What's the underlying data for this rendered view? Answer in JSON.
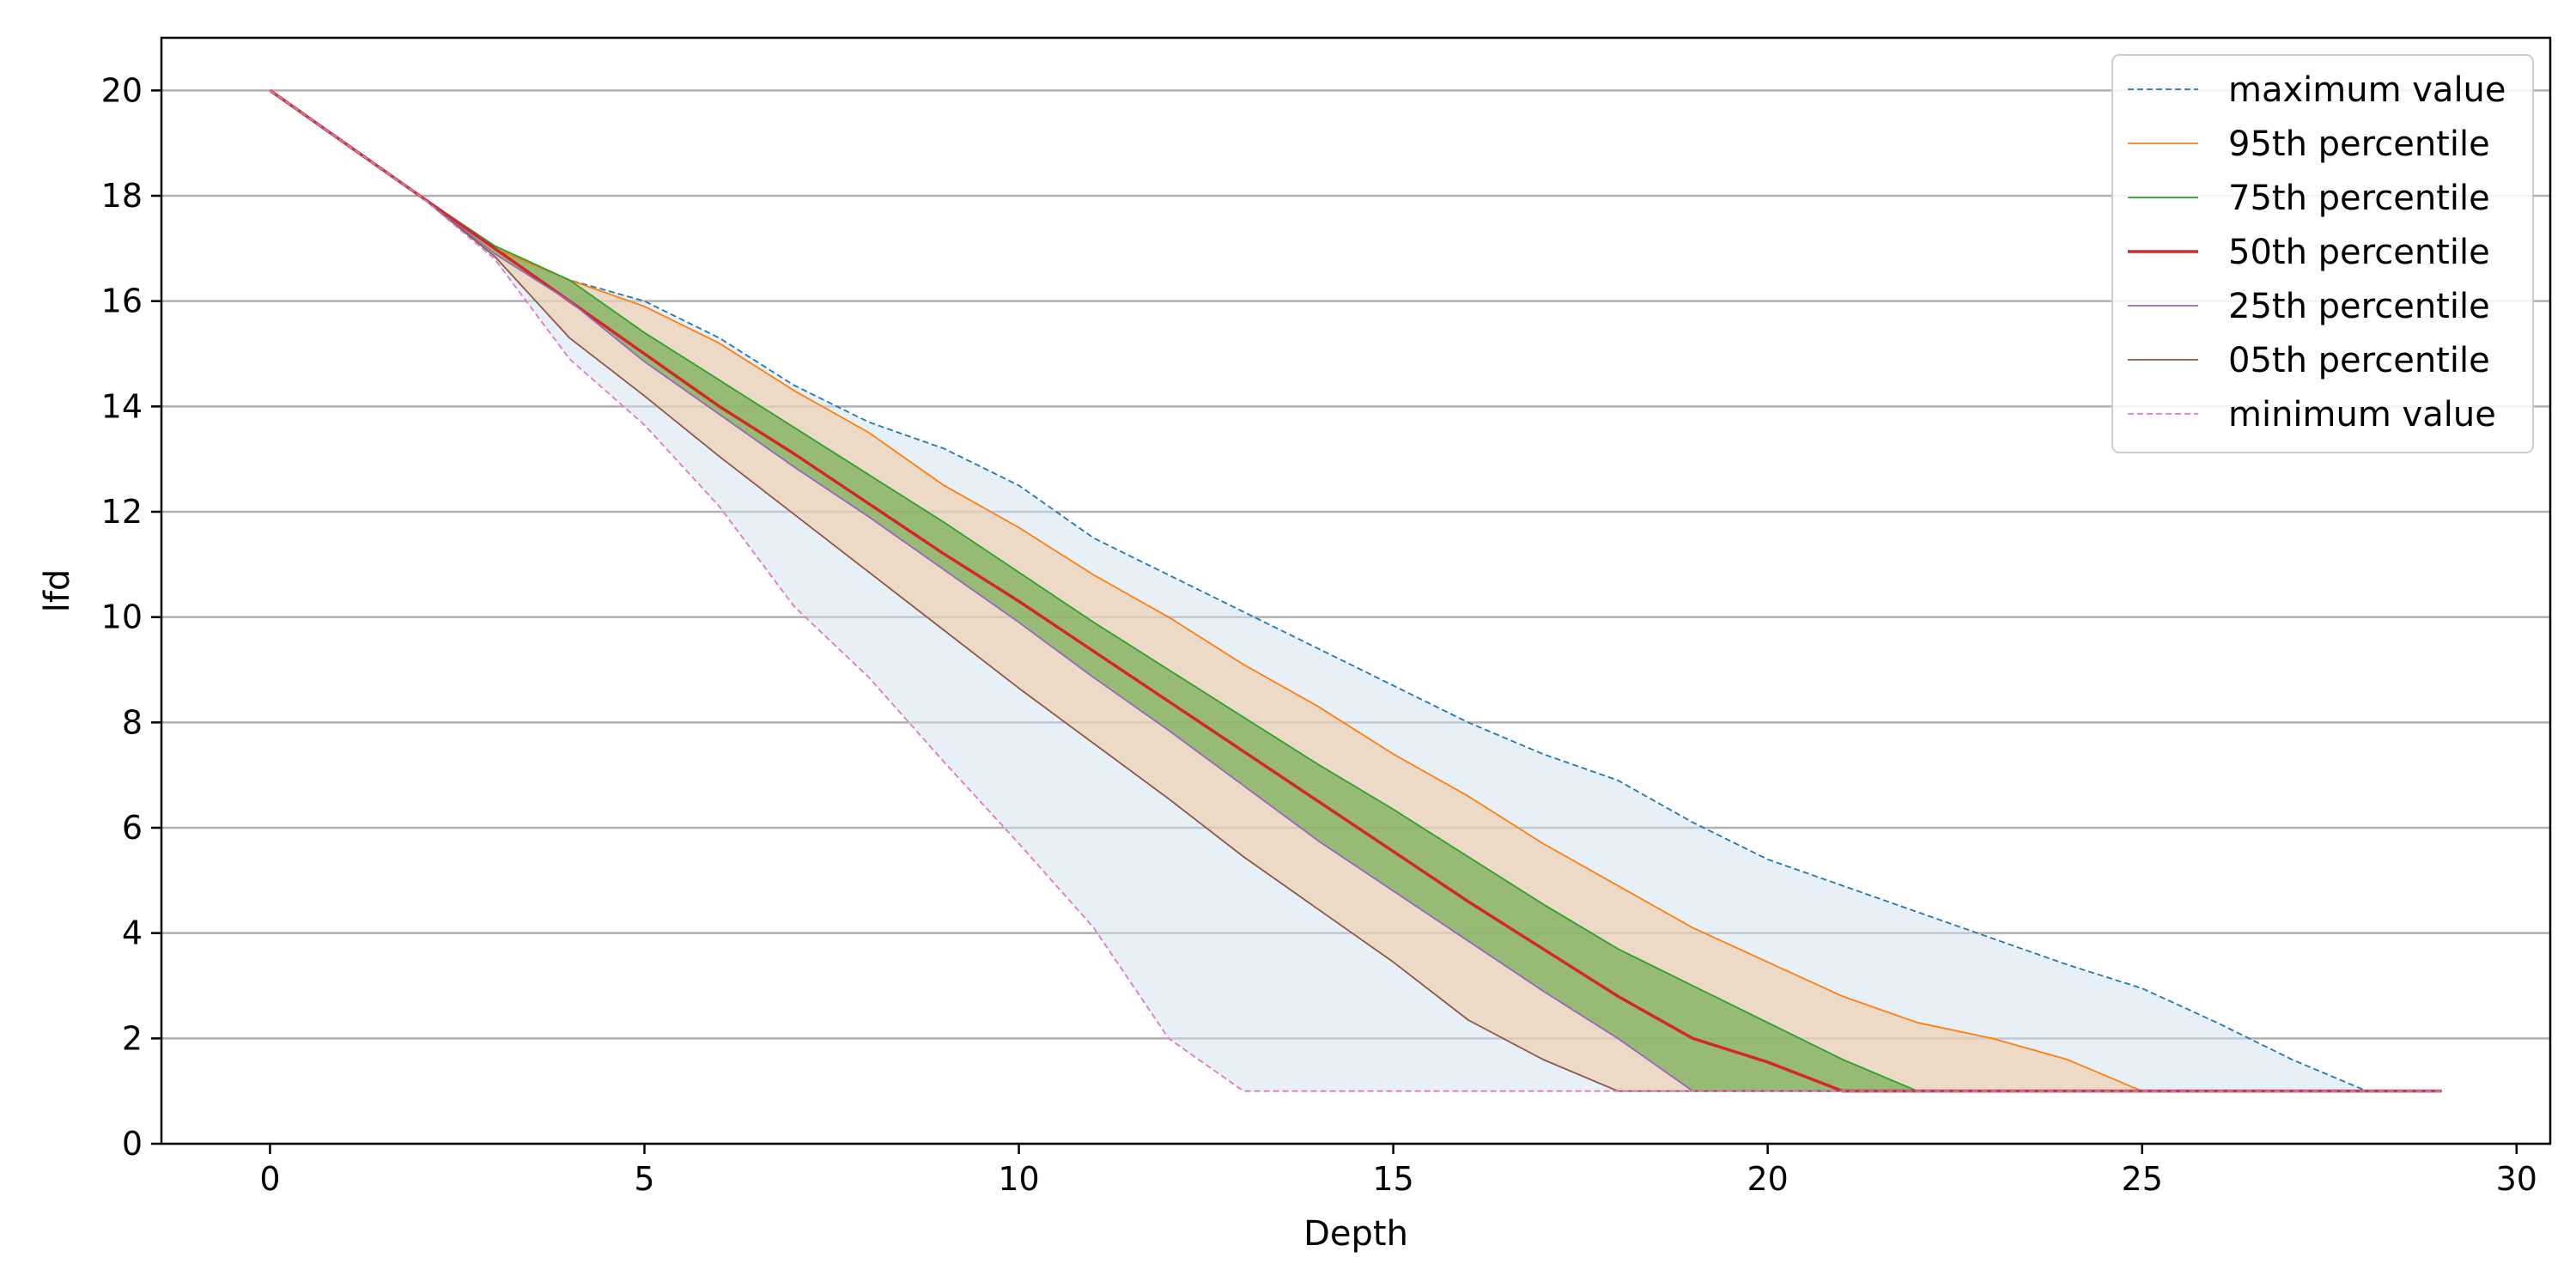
{
  "chart_data": {
    "type": "line",
    "title": "",
    "xlabel": "Depth",
    "ylabel": "lfd",
    "xlim": [
      -1.45,
      30.45
    ],
    "ylim": [
      0,
      21
    ],
    "xticks": [
      0,
      5,
      10,
      15,
      20,
      25,
      30
    ],
    "yticks": [
      0,
      2,
      4,
      6,
      8,
      10,
      12,
      14,
      16,
      18,
      20
    ],
    "grid": "horizontal",
    "legend_position": "top-right",
    "x": [
      0,
      1,
      2,
      3,
      4,
      5,
      6,
      7,
      8,
      9,
      10,
      11,
      12,
      13,
      14,
      15,
      16,
      17,
      18,
      19,
      20,
      21,
      22,
      23,
      24,
      25,
      26,
      27,
      28,
      29
    ],
    "series": [
      {
        "name": "maximum value",
        "color": "#1f77b4",
        "style": "dashed",
        "values": [
          20,
          19,
          18,
          17,
          16.4,
          16,
          15.3,
          14.4,
          13.7,
          13.2,
          12.5,
          11.5,
          10.8,
          10.1,
          9.4,
          8.7,
          8,
          7.4,
          6.9,
          6.1,
          5.4,
          4.9,
          4.4,
          3.9,
          3.4,
          2.95,
          2.3,
          1.6,
          1,
          1
        ]
      },
      {
        "name": "95th percentile",
        "color": "#ff7f0e",
        "style": "solid",
        "values": [
          20,
          19,
          18,
          17,
          16.4,
          15.9,
          15.2,
          14.3,
          13.5,
          12.5,
          11.7,
          10.8,
          10,
          9.1,
          8.3,
          7.4,
          6.6,
          5.7,
          4.9,
          4.1,
          3.45,
          2.8,
          2.3,
          2,
          1.6,
          1,
          1,
          1,
          1,
          1
        ]
      },
      {
        "name": "75th percentile",
        "color": "#2ca02c",
        "style": "solid",
        "values": [
          20,
          19,
          18,
          17.05,
          16.4,
          15.4,
          14.5,
          13.6,
          12.7,
          11.8,
          10.85,
          9.9,
          9,
          8.1,
          7.2,
          6.35,
          5.45,
          4.55,
          3.7,
          3,
          2.3,
          1.6,
          1,
          1,
          1,
          1,
          1,
          1,
          1,
          1
        ]
      },
      {
        "name": "50th percentile",
        "color": "#d62728",
        "style": "solid",
        "values": [
          20,
          19,
          18,
          17,
          16,
          15,
          14,
          13.1,
          12.15,
          11.2,
          10.3,
          9.35,
          8.4,
          7.45,
          6.5,
          5.55,
          4.6,
          3.7,
          2.8,
          2,
          1.55,
          1,
          1,
          1,
          1,
          1,
          1,
          1,
          1,
          1
        ]
      },
      {
        "name": "25th percentile",
        "color": "#9467bd",
        "style": "solid",
        "values": [
          20,
          19,
          18,
          16.9,
          16,
          14.85,
          13.85,
          12.85,
          11.9,
          10.9,
          9.9,
          8.85,
          7.85,
          6.8,
          5.75,
          4.8,
          3.85,
          2.9,
          2,
          1,
          1,
          1,
          1,
          1,
          1,
          1,
          1,
          1,
          1,
          1
        ]
      },
      {
        "name": "05th percentile",
        "color": "#8c564b",
        "style": "solid",
        "values": [
          20,
          19,
          18,
          16.85,
          15.3,
          14.2,
          13.05,
          11.95,
          10.85,
          9.75,
          8.65,
          7.6,
          6.55,
          5.45,
          4.45,
          3.45,
          2.35,
          1.6,
          1,
          1,
          1,
          1,
          1,
          1,
          1,
          1,
          1,
          1,
          1,
          1
        ]
      },
      {
        "name": "minimum value",
        "color": "#e377c2",
        "style": "dashed",
        "values": [
          20,
          19,
          18,
          16.8,
          14.9,
          13.65,
          12.1,
          10.2,
          8.85,
          7.25,
          5.7,
          4.1,
          2,
          1,
          1,
          1,
          1,
          1,
          1,
          1,
          1,
          1,
          1,
          1,
          1,
          1,
          1,
          1,
          1,
          1
        ]
      }
    ],
    "bands": [
      {
        "between": [
          "minimum value",
          "maximum value"
        ],
        "color": "#cfe0f0",
        "opacity": 0.5
      },
      {
        "between": [
          "05th percentile",
          "95th percentile"
        ],
        "color": "#f0c8a0",
        "opacity": 0.55
      },
      {
        "between": [
          "25th percentile",
          "75th percentile"
        ],
        "color": "#6aaa4a",
        "opacity": 0.65
      }
    ]
  }
}
